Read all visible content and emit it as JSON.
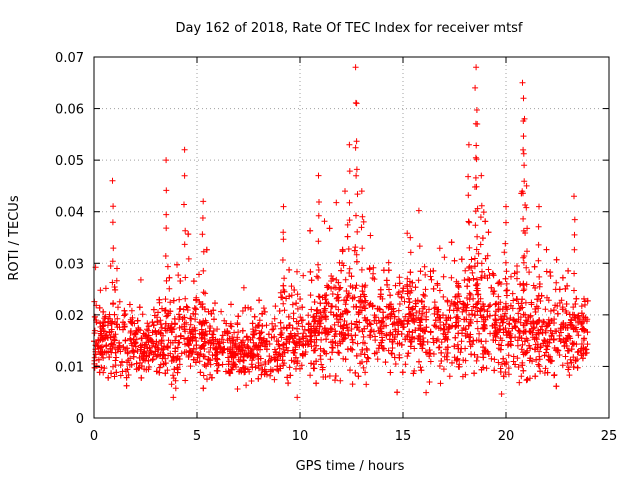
{
  "chart_data": {
    "type": "scatter",
    "title": "Day 162 of 2018, Rate Of TEC Index for receiver mtsf",
    "xlabel": "GPS time / hours",
    "ylabel": "ROTI / TECUs",
    "xlim": [
      0,
      25
    ],
    "ylim": [
      0,
      0.07
    ],
    "x_ticks": [
      0,
      5,
      10,
      15,
      20,
      25
    ],
    "x_tick_labels": [
      "0",
      "5",
      "10",
      "15",
      "20",
      "25"
    ],
    "y_ticks": [
      0,
      0.01,
      0.02,
      0.03,
      0.04,
      0.05,
      0.06,
      0.07
    ],
    "y_tick_labels": [
      "0",
      "0.01",
      "0.02",
      "0.03",
      "0.04",
      "0.05",
      "0.06",
      "0.07"
    ],
    "grid": true,
    "marker": "plus",
    "marker_color": "#ff0000",
    "series": [
      {
        "name": "ROTI",
        "color": "#ff0000",
        "x_range": [
          0,
          24
        ],
        "hourly_profile": {
          "hours": [
            0,
            1,
            2,
            3,
            4,
            5,
            6,
            7,
            8,
            9,
            10,
            11,
            12,
            13,
            14,
            15,
            16,
            17,
            18,
            19,
            20,
            21,
            22,
            23,
            24
          ],
          "median": [
            0.015,
            0.015,
            0.014,
            0.014,
            0.016,
            0.015,
            0.014,
            0.013,
            0.013,
            0.015,
            0.016,
            0.017,
            0.019,
            0.019,
            0.018,
            0.019,
            0.019,
            0.018,
            0.02,
            0.019,
            0.017,
            0.016,
            0.016,
            0.016,
            0.016
          ],
          "spread": [
            0.006,
            0.009,
            0.007,
            0.008,
            0.012,
            0.009,
            0.007,
            0.006,
            0.007,
            0.009,
            0.009,
            0.011,
            0.012,
            0.012,
            0.01,
            0.011,
            0.012,
            0.011,
            0.013,
            0.013,
            0.011,
            0.011,
            0.01,
            0.01,
            0.008
          ]
        },
        "min_value": 0.004,
        "max_value": 0.068,
        "peaks": [
          {
            "x": 0.9,
            "y": 0.046
          },
          {
            "x": 3.5,
            "y": 0.05
          },
          {
            "x": 4.4,
            "y": 0.052
          },
          {
            "x": 5.3,
            "y": 0.042
          },
          {
            "x": 9.2,
            "y": 0.041
          },
          {
            "x": 10.9,
            "y": 0.047
          },
          {
            "x": 12.4,
            "y": 0.053
          },
          {
            "x": 12.7,
            "y": 0.068
          },
          {
            "x": 12.75,
            "y": 0.061
          },
          {
            "x": 13.0,
            "y": 0.044
          },
          {
            "x": 18.2,
            "y": 0.053
          },
          {
            "x": 18.5,
            "y": 0.064
          },
          {
            "x": 18.55,
            "y": 0.068
          },
          {
            "x": 18.6,
            "y": 0.057
          },
          {
            "x": 18.8,
            "y": 0.047
          },
          {
            "x": 20.0,
            "y": 0.041
          },
          {
            "x": 20.8,
            "y": 0.065
          },
          {
            "x": 20.85,
            "y": 0.062
          },
          {
            "x": 20.9,
            "y": 0.058
          },
          {
            "x": 21.0,
            "y": 0.045
          },
          {
            "x": 21.6,
            "y": 0.041
          },
          {
            "x": 23.3,
            "y": 0.043
          }
        ]
      }
    ]
  }
}
